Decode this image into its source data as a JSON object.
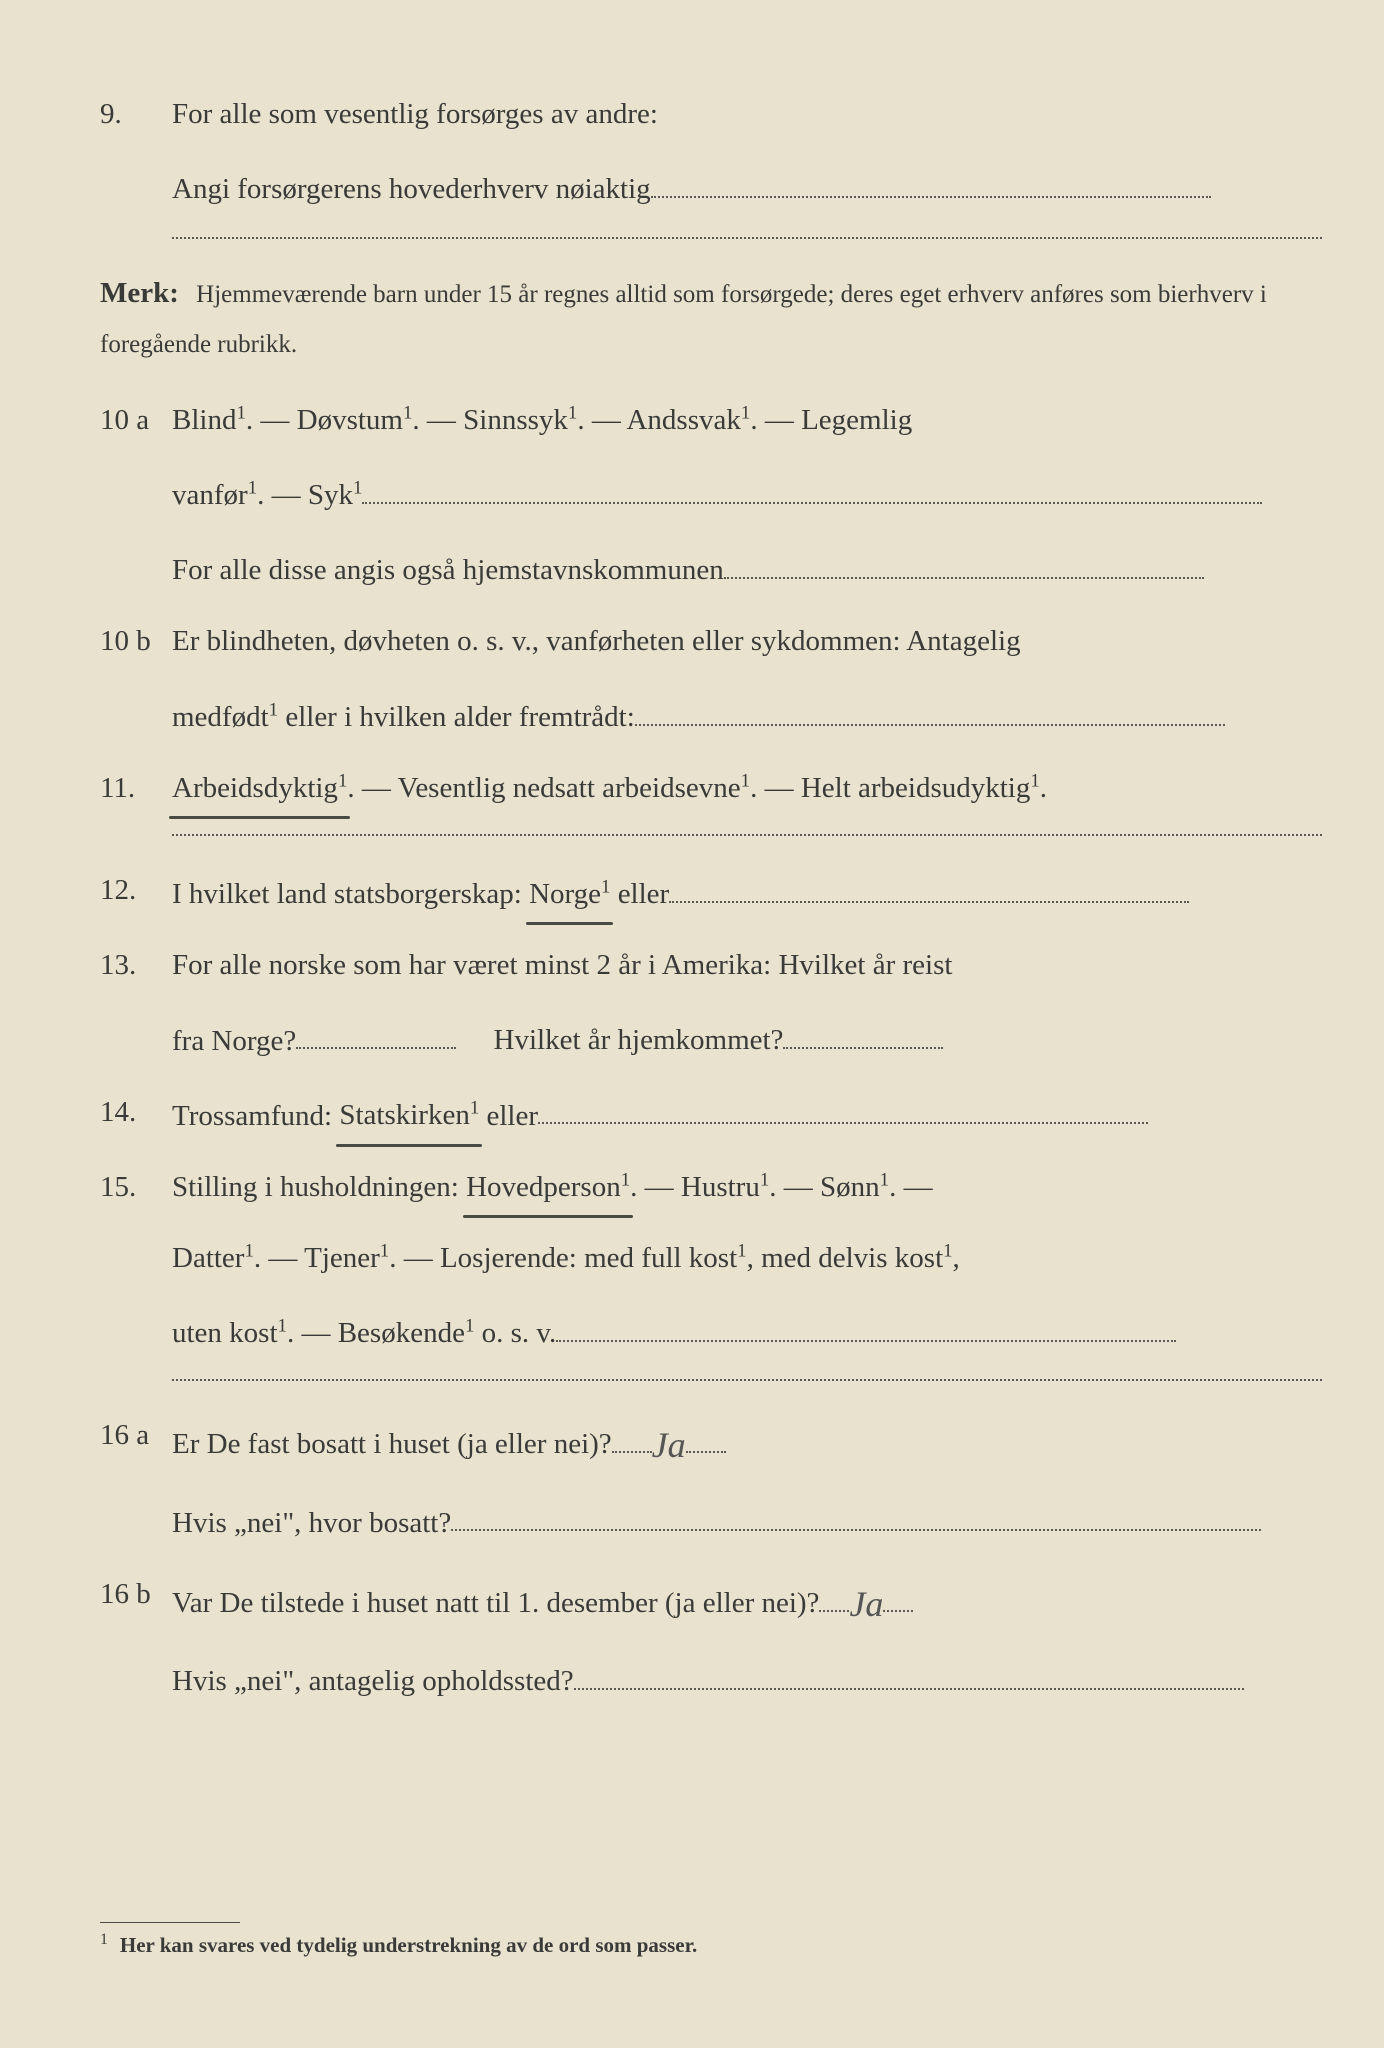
{
  "colors": {
    "page_background": "#e8e2ce",
    "text_color": "#3a3a38",
    "dotted_color": "#5a5a55",
    "underline_color": "#4a4a45",
    "handwriting_color": "#555555"
  },
  "typography": {
    "body_fontsize_pt": 22,
    "merk_fontsize_pt": 19,
    "footnote_fontsize_pt": 16,
    "font_family": "serif"
  },
  "q9": {
    "number": "9.",
    "line1": "For alle som vesentlig forsørges av andre:",
    "line2_prefix": "Angi forsørgerens hovederhverv nøiaktig"
  },
  "merk": {
    "label": "Merk:",
    "text": "Hjemmeværende barn under 15 år regnes alltid som forsørgede; deres eget erhverv anføres som bierhverv i foregående rubrikk."
  },
  "q10a": {
    "number": "10 a",
    "text1": "Blind¹.   —   Døvstum¹.   —   Sinnssyk¹.   —   Andssvak¹.   —   Legemlig",
    "text2_prefix": "vanfør¹.  —  Syk¹",
    "text3_prefix": "For  alle  disse  angis  også  hjemstavnskommunen"
  },
  "q10b": {
    "number": "10 b",
    "text1": "Er blindheten, døvheten o. s. v., vanførheten eller sykdommen:  Antagelig",
    "text2_prefix": "medfødt¹ eller i hvilken alder fremtrådt:"
  },
  "q11": {
    "number": "11.",
    "underlined": "Arbeidsdyktig¹",
    "rest": ". — Vesentlig nedsatt arbeidsevne¹. — Helt arbeidsudyktig¹."
  },
  "q12": {
    "number": "12.",
    "prefix": "I  hvilket  land  statsborgerskap:  ",
    "underlined": "Norge¹",
    "suffix": "  eller"
  },
  "q13": {
    "number": "13.",
    "text1": "For alle norske som har været minst 2 år i Amerika:  Hvilket år reist",
    "text2_a": "fra Norge?",
    "text2_b": "Hvilket år hjemkommet?"
  },
  "q14": {
    "number": "14.",
    "prefix": "Trossamfund:   ",
    "underlined": "Statskirken¹",
    "suffix": "  eller"
  },
  "q15": {
    "number": "15.",
    "prefix": "Stilling  i  husholdningen:   ",
    "underlined": "Hovedperson¹",
    "rest1": ".   —   Hustru¹.   —   Sønn¹.   —",
    "line2": "Datter¹.   —   Tjener¹.   —  Losjerende:   med full kost¹,  med delvis kost¹,",
    "line3_prefix": "uten kost¹.   —   Besøkende¹  o. s. v."
  },
  "q16a": {
    "number": "16 a",
    "text1_prefix": "Er De fast bosatt i huset (ja eller nei)?",
    "answer1": "Ja",
    "text2_prefix": "Hvis „nei\", hvor bosatt?"
  },
  "q16b": {
    "number": "16 b",
    "text1_prefix": "Var De tilstede i huset natt til 1. desember (ja eller nei)?",
    "answer1": "Ja",
    "text2_prefix": "Hvis „nei\", antagelig opholdssted?"
  },
  "footnote": {
    "marker": "1",
    "text": "Her kan svares ved tydelig understrekning av de ord som passer."
  }
}
